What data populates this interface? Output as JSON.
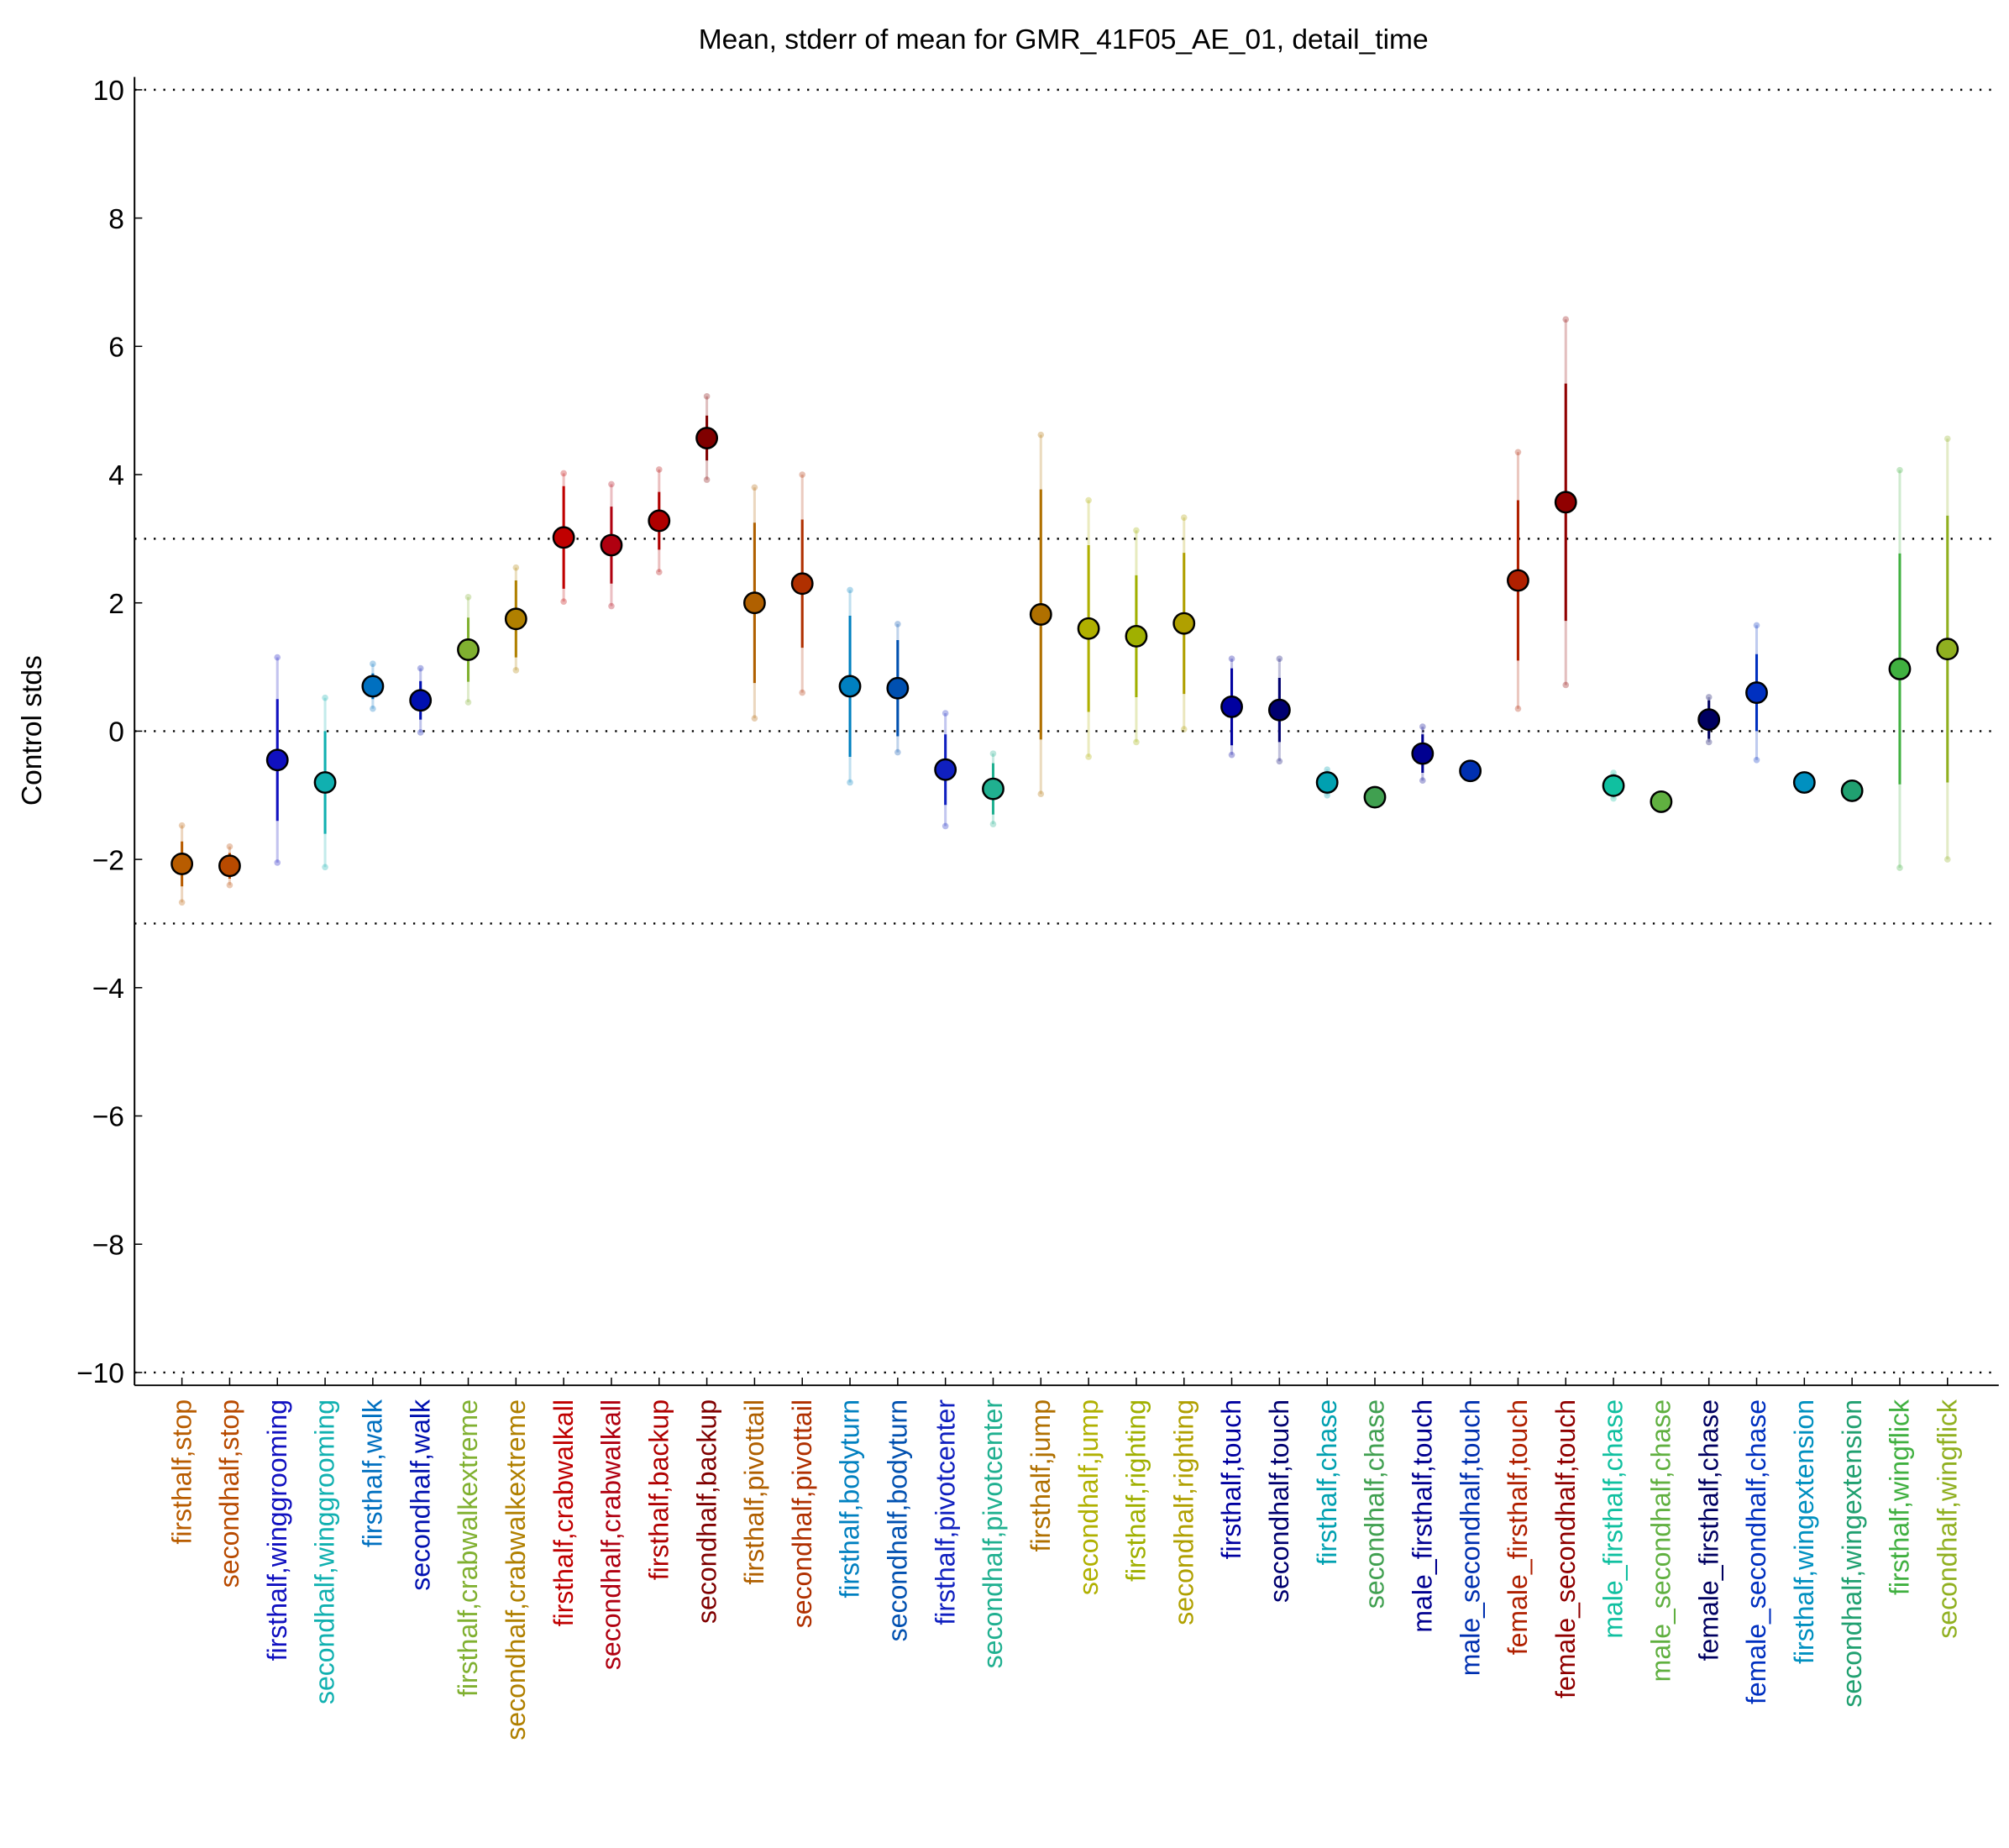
{
  "chart_data": {
    "type": "errorbar",
    "title": "Mean, stderr of mean for GMR_41F05_AE_01, detail_time",
    "y_label": "Control stds",
    "categories": [
      "firsthalf,stop",
      "secondhalf,stop",
      "firsthalf,winggrooming",
      "secondhalf,winggrooming",
      "firsthalf,walk",
      "secondhalf,walk",
      "firsthalf,crabwalkextreme",
      "secondhalf,crabwalkextreme",
      "firsthalf,crabwalkall",
      "secondhalf,crabwalkall",
      "firsthalf,backup",
      "secondhalf,backup",
      "firsthalf,pivottail",
      "secondhalf,pivottail",
      "firsthalf,bodyturn",
      "secondhalf,bodyturn",
      "firsthalf,pivotcenter",
      "secondhalf,pivotcenter",
      "firsthalf,jump",
      "secondhalf,jump",
      "firsthalf,righting",
      "secondhalf,righting",
      "firsthalf,touch",
      "secondhalf,touch",
      "firsthalf,chase",
      "secondhalf,chase",
      "male_firsthalf,touch",
      "male_secondhalf,touch",
      "female_firsthalf,touch",
      "female_secondhalf,touch",
      "male_firsthalf,chase",
      "male_secondhalf,chase",
      "female_firsthalf,chase",
      "female_secondhalf,chase",
      "firsthalf,wingextension",
      "secondhalf,wingextension",
      "firsthalf,wingflick",
      "secondhalf,wingflick"
    ],
    "values": [
      -2.07,
      -2.1,
      -0.45,
      -0.8,
      0.7,
      0.48,
      1.27,
      1.75,
      3.02,
      2.9,
      3.28,
      4.57,
      2.0,
      2.3,
      0.7,
      0.67,
      -0.6,
      -0.9,
      1.82,
      1.6,
      1.48,
      1.68,
      0.38,
      0.33,
      -0.8,
      -1.03,
      -0.35,
      -0.62,
      2.35,
      3.57,
      -0.85,
      -1.1,
      0.18,
      0.6,
      -0.8,
      -0.93,
      0.97,
      1.28
    ],
    "errors": [
      0.35,
      0.2,
      0.95,
      0.8,
      0.2,
      0.3,
      0.5,
      0.6,
      0.8,
      0.6,
      0.45,
      0.35,
      1.25,
      1.0,
      1.1,
      0.75,
      0.55,
      0.4,
      1.95,
      1.3,
      0.95,
      1.1,
      0.6,
      0.5,
      0.1,
      0.05,
      0.3,
      0.05,
      1.25,
      1.85,
      0.1,
      0.05,
      0.3,
      0.6,
      0.08,
      0.05,
      1.8,
      2.08
    ],
    "spread": [
      0.6,
      0.3,
      1.6,
      1.32,
      0.35,
      0.5,
      0.82,
      0.8,
      1.0,
      0.95,
      0.8,
      0.65,
      1.8,
      1.7,
      1.5,
      1.0,
      0.88,
      0.55,
      2.8,
      2.0,
      1.65,
      1.65,
      0.75,
      0.8,
      0.2,
      0.08,
      0.42,
      0.08,
      2.0,
      2.85,
      0.2,
      0.08,
      0.35,
      1.05,
      0.12,
      0.08,
      3.1,
      3.28
    ],
    "colors": [
      "#b85c00",
      "#b84a00",
      "#1010c0",
      "#10b0b0",
      "#0070c0",
      "#0010b0",
      "#80b030",
      "#b08000",
      "#c00000",
      "#b00010",
      "#b00000",
      "#800000",
      "#b06000",
      "#b03000",
      "#0080c0",
      "#0050b0",
      "#1020c0",
      "#20b090",
      "#b07000",
      "#b0b000",
      "#a0b000",
      "#b0a000",
      "#0000a0",
      "#000070",
      "#00a0b0",
      "#40a050",
      "#000090",
      "#0030b0",
      "#b02000",
      "#900000",
      "#10c0a0",
      "#60b040",
      "#000060",
      "#0030c0",
      "#0090c0",
      "#20a070",
      "#40b040",
      "#90b020"
    ],
    "ylim": [
      -10.2,
      10.2
    ],
    "yticks": [
      {
        "value": -10,
        "label": "−10"
      },
      {
        "value": -8,
        "label": "−8"
      },
      {
        "value": -6,
        "label": "−6"
      },
      {
        "value": -4,
        "label": "−4"
      },
      {
        "value": -2,
        "label": "−2"
      },
      0,
      2,
      4,
      6,
      8,
      10
    ],
    "reference_lines": [
      10,
      3,
      0,
      -3,
      -10
    ]
  }
}
